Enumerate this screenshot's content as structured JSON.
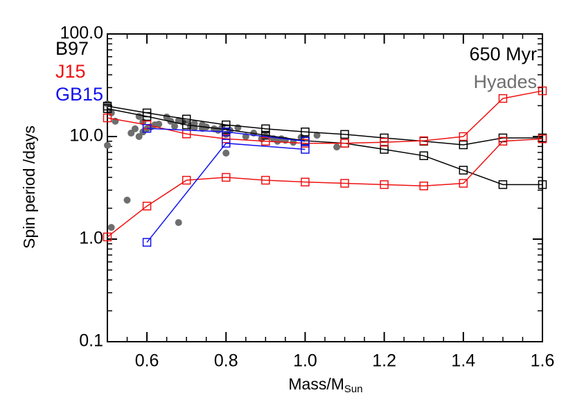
{
  "chart_data": {
    "type": "line",
    "y_label": "Spin period /days",
    "x_label": "Mass/M",
    "x_label_sub": "Sun",
    "annotation": "650 Myr",
    "xlim": [
      0.5,
      1.6
    ],
    "ylim": [
      0.1,
      100
    ],
    "log_y": true,
    "xticks": [
      0.6,
      0.8,
      {
        "value": 1.0,
        "label": "1.0"
      },
      1.2,
      1.4,
      1.6
    ],
    "yticks": [
      0.1,
      {
        "value": 1,
        "label": "1.0"
      },
      {
        "value": 10,
        "label": "10.0"
      },
      {
        "value": 100,
        "label": "100.0"
      }
    ],
    "series": [
      {
        "name": "B97",
        "color": "#000000",
        "x": [
          0.5,
          0.6,
          0.7,
          0.8,
          0.9,
          1.0,
          1.1,
          1.2,
          1.3,
          1.4,
          1.5,
          1.6
        ],
        "branches": [
          [
            19.8,
            17.0,
            14.8,
            13.0,
            11.9,
            11.1,
            10.5,
            9.7,
            9.0,
            8.3,
            9.7,
            9.7
          ],
          [
            18.7,
            15.7,
            13.0,
            11.7,
            10.3,
            9.1,
            8.6,
            7.5,
            6.5,
            4.7,
            3.4,
            3.4
          ]
        ]
      },
      {
        "name": "J15",
        "color": "#ee1111",
        "x": [
          0.5,
          0.6,
          0.7,
          0.8,
          0.9,
          1.0,
          1.1,
          1.2,
          1.3,
          1.4,
          1.5,
          1.6
        ],
        "branches": [
          [
            15.2,
            13.0,
            10.6,
            9.5,
            9.0,
            8.6,
            8.6,
            8.8,
            9.1,
            10.0,
            23.5,
            27.9
          ],
          [
            1.05,
            2.1,
            3.75,
            4.0,
            3.75,
            3.6,
            3.5,
            3.4,
            3.3,
            3.5,
            9.0,
            9.5
          ]
        ]
      },
      {
        "name": "GB15",
        "color": "#1111ee",
        "x": [
          0.6,
          0.8,
          1.0
        ],
        "branches": [
          [
            12.0,
            11.1,
            9.0
          ],
          [
            0.93,
            8.6,
            7.5
          ]
        ]
      }
    ],
    "scatter": {
      "name": "Hyades",
      "color": "#6e6e6e",
      "x": [
        0.5,
        0.5,
        0.51,
        0.52,
        0.51,
        0.55,
        0.56,
        0.57,
        0.58,
        0.58,
        0.59,
        0.59,
        0.6,
        0.61,
        0.62,
        0.63,
        0.65,
        0.66,
        0.67,
        0.68,
        0.68,
        0.69,
        0.71,
        0.72,
        0.72,
        0.74,
        0.74,
        0.75,
        0.77,
        0.78,
        0.79,
        0.8,
        0.8,
        0.81,
        0.83,
        0.85,
        0.87,
        0.89,
        0.9,
        0.92,
        0.93,
        0.94,
        0.95,
        0.97,
        0.99,
        1.03,
        1.08
      ],
      "values": [
        20.8,
        8.2,
        17.0,
        14.1,
        1.3,
        2.4,
        10.8,
        11.9,
        10.0,
        15.7,
        13.9,
        11.1,
        11.9,
        12.4,
        13.0,
        13.2,
        15.5,
        14.1,
        12.6,
        14.3,
        1.45,
        13.9,
        12.6,
        12.2,
        13.4,
        13.0,
        12.0,
        12.4,
        11.9,
        11.5,
        12.2,
        6.9,
        10.5,
        11.5,
        12.2,
        10.0,
        10.8,
        9.5,
        10.1,
        9.5,
        9.0,
        9.5,
        9.2,
        8.8,
        9.8,
        10.3,
        7.9
      ]
    }
  }
}
